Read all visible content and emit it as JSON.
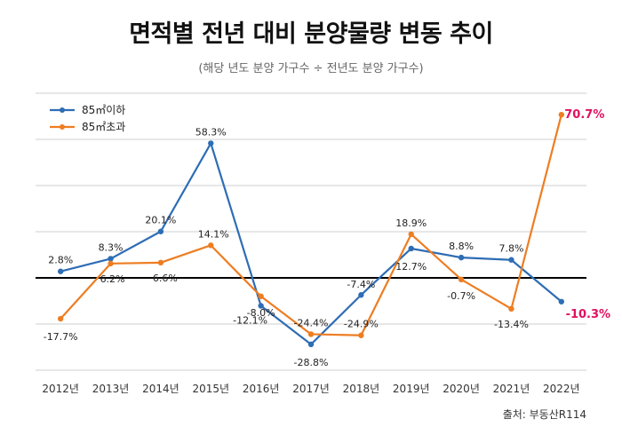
{
  "header": {
    "title": "면적별 전년 대비 분양물량 변동 추이",
    "subtitle": "(해당 년도 분양 가구수 ÷ 전년도 분양 가구수)"
  },
  "footer": {
    "source": "출처: 부동산R114"
  },
  "colors": {
    "series_small": "#2e6db4",
    "series_large": "#ee7d22",
    "highlight": "#e0115f",
    "grid": "#cfcfcf",
    "zero_line": "#000000"
  },
  "chart_data": {
    "type": "line",
    "x": [
      "2012년",
      "2013년",
      "2014년",
      "2015년",
      "2016년",
      "2017년",
      "2018년",
      "2019년",
      "2020년",
      "2021년",
      "2022년"
    ],
    "ylim": [
      -40,
      80
    ],
    "grid": true,
    "legend_position": "top-left",
    "series": [
      {
        "name": "85㎡이하",
        "values": [
          2.8,
          8.3,
          20.1,
          58.3,
          -12.1,
          -28.8,
          -7.4,
          12.7,
          8.8,
          7.8,
          -10.3
        ],
        "labels": [
          "2.8%",
          "8.3%",
          "20.1%",
          "58.3%",
          "-12.1%",
          "-28.8%",
          "-7.4%",
          "12.7%",
          "8.8%",
          "7.8%",
          "-10.3%"
        ]
      },
      {
        "name": "85㎡초과",
        "values": [
          -17.7,
          6.2,
          6.6,
          14.1,
          -8.0,
          -24.4,
          -24.9,
          18.9,
          -0.7,
          -13.4,
          70.7
        ],
        "labels": [
          "-17.7%",
          "6.2%",
          "6.6%",
          "14.1%",
          "-8.0%",
          "-24.4%",
          "-24.9%",
          "18.9%",
          "-0.7%",
          "-13.4%",
          "70.7%"
        ]
      }
    ]
  }
}
